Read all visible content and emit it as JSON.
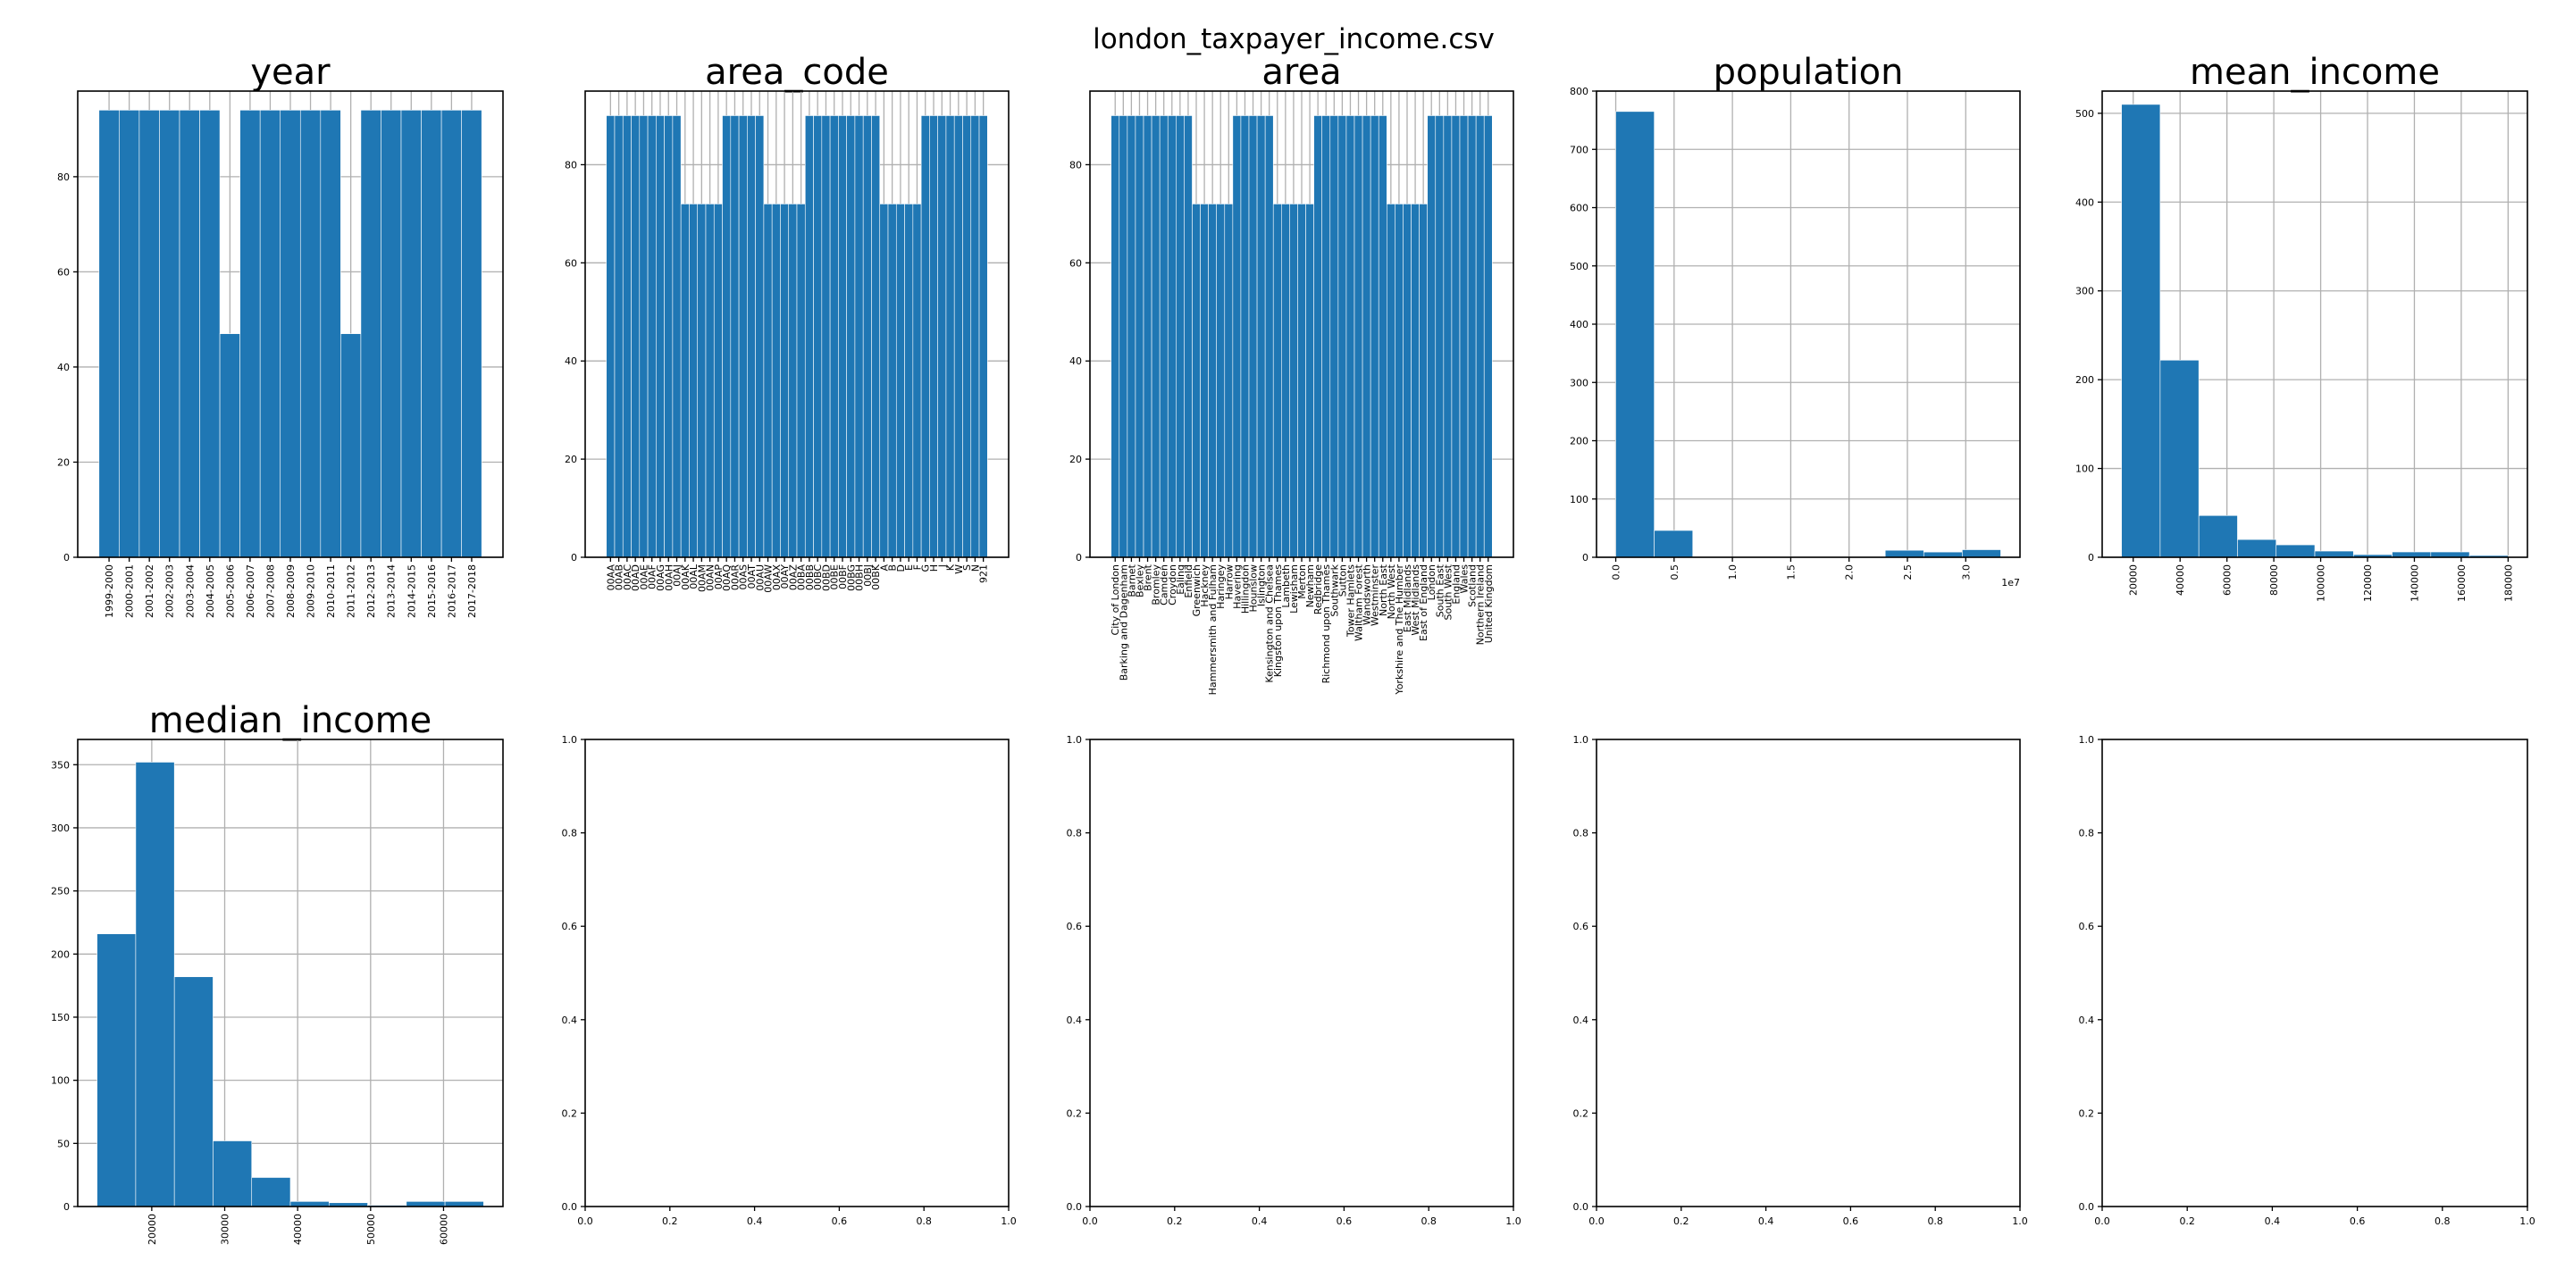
{
  "figure": {
    "title": "london_taxpayer_income.csv"
  },
  "chart_data": [
    {
      "id": "year",
      "type": "bar",
      "title": "year",
      "categories": [
        "1999-2000",
        "2000-2001",
        "2001-2002",
        "2002-2003",
        "2003-2004",
        "2004-2005",
        "2005-2006",
        "2006-2007",
        "2007-2008",
        "2008-2009",
        "2009-2010",
        "2010-2011",
        "2011-2012",
        "2012-2013",
        "2013-2014",
        "2014-2015",
        "2015-2016",
        "2016-2017",
        "2017-2018"
      ],
      "values": [
        94,
        94,
        94,
        94,
        94,
        94,
        47,
        94,
        94,
        94,
        94,
        94,
        47,
        94,
        94,
        94,
        94,
        94,
        94
      ],
      "ylim": [
        0,
        98
      ],
      "yticks": [
        0,
        20,
        40,
        60,
        80
      ],
      "grid": true
    },
    {
      "id": "area_code",
      "type": "bar",
      "title": "area_code",
      "categories": [
        "00AA",
        "00AB",
        "00AC",
        "00AD",
        "00AE",
        "00AF",
        "00AG",
        "00AH",
        "00AJ",
        "00AK",
        "00AL",
        "00AM",
        "00AN",
        "00AP",
        "00AQ",
        "00AR",
        "00AS",
        "00AT",
        "00AU",
        "00AW",
        "00AX",
        "00AY",
        "00AZ",
        "00BA",
        "00BB",
        "00BC",
        "00BD",
        "00BE",
        "00BF",
        "00BG",
        "00BH",
        "00BJ",
        "00BK",
        "A",
        "B",
        "D",
        "E",
        "F",
        "G",
        "H",
        "J",
        "K",
        "W",
        "S",
        "N",
        "921"
      ],
      "values": [
        90,
        90,
        90,
        90,
        90,
        90,
        90,
        90,
        90,
        72,
        72,
        72,
        72,
        72,
        90,
        90,
        90,
        90,
        90,
        72,
        72,
        72,
        72,
        72,
        90,
        90,
        90,
        90,
        90,
        90,
        90,
        90,
        90,
        72,
        72,
        72,
        72,
        72,
        90,
        90,
        90,
        90,
        90,
        90,
        90,
        90
      ],
      "ylim": [
        0,
        95
      ],
      "yticks": [
        0,
        20,
        40,
        60,
        80
      ],
      "grid": true
    },
    {
      "id": "area",
      "type": "bar",
      "title": "area",
      "categories": [
        "City of London",
        "Barking and Dagenham",
        "Barnet",
        "Bexley",
        "Brent",
        "Bromley",
        "Camden",
        "Croydon",
        "Ealing",
        "Enfield",
        "Greenwich",
        "Hackney",
        "Hammersmith and Fulham",
        "Haringey",
        "Harrow",
        "Havering",
        "Hillingdon",
        "Hounslow",
        "Islington",
        "Kensington and Chelsea",
        "Kingston upon Thames",
        "Lambeth",
        "Lewisham",
        "Merton",
        "Newham",
        "Redbridge",
        "Richmond upon Thames",
        "Southwark",
        "Sutton",
        "Tower Hamlets",
        "Waltham Forest",
        "Wandsworth",
        "Westminster",
        "North East",
        "North West",
        "Yorkshire and The Humber",
        "East Midlands",
        "West Midlands",
        "East of England",
        "London",
        "South East",
        "South West",
        "England",
        "Wales",
        "Scotland",
        "Northern Ireland",
        "United Kingdom"
      ],
      "values": [
        90,
        90,
        90,
        90,
        90,
        90,
        90,
        90,
        90,
        90,
        72,
        72,
        72,
        72,
        72,
        90,
        90,
        90,
        90,
        90,
        72,
        72,
        72,
        72,
        72,
        90,
        90,
        90,
        90,
        90,
        90,
        90,
        90,
        90,
        72,
        72,
        72,
        72,
        72,
        90,
        90,
        90,
        90,
        90,
        90,
        90,
        90
      ],
      "ylim": [
        0,
        95
      ],
      "yticks": [
        0,
        20,
        40,
        60,
        80
      ],
      "grid": true
    },
    {
      "id": "population",
      "type": "bar",
      "title": "population",
      "bin_edges": [
        0,
        3300000,
        6600000,
        9900000,
        13200000,
        16500000,
        19800000,
        23100000,
        26400000,
        29700000,
        33000000
      ],
      "values": [
        765,
        46,
        0,
        0,
        0,
        0,
        0,
        12,
        9,
        13
      ],
      "xlim": [
        -1650000,
        34650000
      ],
      "xticks": [
        0,
        5000000,
        10000000,
        15000000,
        20000000,
        25000000,
        30000000
      ],
      "xticklabels": [
        "0.0",
        "0.5",
        "1.0",
        "1.5",
        "2.0",
        "2.5",
        "3.0"
      ],
      "x_offset_text": "1e7",
      "ylim": [
        0,
        800
      ],
      "yticks": [
        0,
        100,
        200,
        300,
        400,
        500,
        600,
        700,
        800
      ],
      "grid": true
    },
    {
      "id": "mean_income",
      "type": "bar",
      "title": "mean_income",
      "bin_edges": [
        15000,
        31500,
        48000,
        64500,
        81000,
        97500,
        114000,
        130500,
        147000,
        163500,
        180000
      ],
      "values": [
        510,
        222,
        47,
        20,
        14,
        7,
        3,
        6,
        6,
        2
      ],
      "xlim": [
        6750,
        188250
      ],
      "xticks": [
        20000,
        40000,
        60000,
        80000,
        100000,
        120000,
        140000,
        160000,
        180000
      ],
      "xticklabels": [
        "20000",
        "40000",
        "60000",
        "80000",
        "100000",
        "120000",
        "140000",
        "160000",
        "180000"
      ],
      "ylim": [
        0,
        525
      ],
      "yticks": [
        0,
        100,
        200,
        300,
        400,
        500
      ],
      "grid": true
    },
    {
      "id": "median_income",
      "type": "bar",
      "title": "median_income",
      "bin_edges": [
        12500,
        17800,
        23100,
        28400,
        33700,
        39000,
        44300,
        49600,
        54900,
        60200,
        65500
      ],
      "values": [
        216,
        352,
        182,
        52,
        23,
        4,
        3,
        1,
        4,
        4
      ],
      "xlim": [
        9850,
        68150
      ],
      "xticks": [
        20000,
        30000,
        40000,
        50000,
        60000
      ],
      "xticklabels": [
        "20000",
        "30000",
        "40000",
        "50000",
        "60000"
      ],
      "ylim": [
        0,
        370
      ],
      "yticks": [
        0,
        50,
        100,
        150,
        200,
        250,
        300,
        350
      ],
      "grid": true
    },
    {
      "id": "empty1",
      "type": "bar",
      "title": "",
      "xlim": [
        0,
        1
      ],
      "ylim": [
        0,
        1
      ],
      "ticks": [
        "0.0",
        "0.2",
        "0.4",
        "0.6",
        "0.8",
        "1.0"
      ],
      "grid": false
    },
    {
      "id": "empty2",
      "type": "bar",
      "title": "",
      "xlim": [
        0,
        1
      ],
      "ylim": [
        0,
        1
      ],
      "ticks": [
        "0.0",
        "0.2",
        "0.4",
        "0.6",
        "0.8",
        "1.0"
      ],
      "grid": false
    },
    {
      "id": "empty3",
      "type": "bar",
      "title": "",
      "xlim": [
        0,
        1
      ],
      "ylim": [
        0,
        1
      ],
      "ticks": [
        "0.0",
        "0.2",
        "0.4",
        "0.6",
        "0.8",
        "1.0"
      ],
      "grid": false
    },
    {
      "id": "empty4",
      "type": "bar",
      "title": "",
      "xlim": [
        0,
        1
      ],
      "ylim": [
        0,
        1
      ],
      "ticks": [
        "0.0",
        "0.2",
        "0.4",
        "0.6",
        "0.8",
        "1.0"
      ],
      "grid": false
    }
  ]
}
